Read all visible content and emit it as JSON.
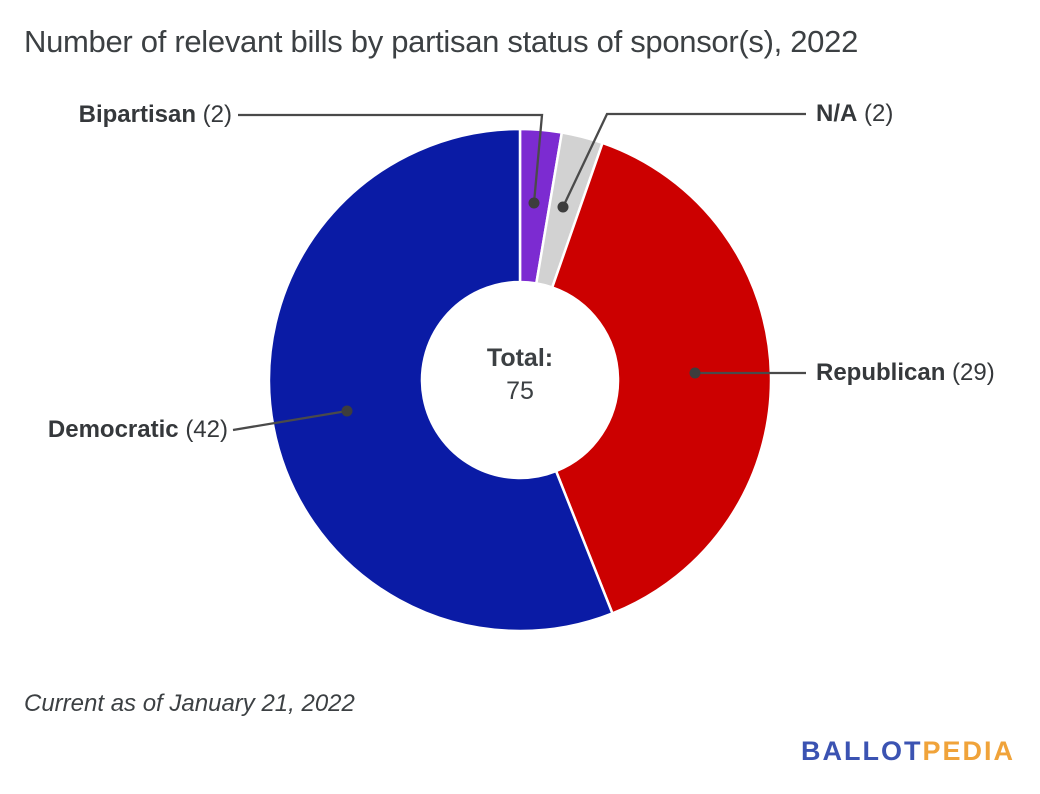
{
  "title": "Number of relevant bills by partisan status of sponsor(s), 2022",
  "chart_data": {
    "type": "pie",
    "subtype": "donut",
    "title": "Number of relevant bills by partisan status of sponsor(s), 2022",
    "categories": [
      "Bipartisan",
      "N/A",
      "Republican",
      "Democratic"
    ],
    "values": [
      2,
      2,
      29,
      42
    ],
    "colors": [
      "#7c2bd1",
      "#d2d2d2",
      "#cc0000",
      "#0a1ba5"
    ],
    "total": 75,
    "center_label": "Total:",
    "center_value": "75",
    "start_angle_deg": 0,
    "direction": "clockwise",
    "labels_style": "callout-leader-lines",
    "legend_position": "none"
  },
  "callouts": {
    "bipartisan": {
      "name": "Bipartisan",
      "count": "(2)"
    },
    "na": {
      "name": "N/A",
      "count": "(2)"
    },
    "republican": {
      "name": "Republican",
      "count": "(29)"
    },
    "democratic": {
      "name": "Democratic",
      "count": "(42)"
    }
  },
  "center": {
    "label": "Total:",
    "value": "75"
  },
  "footer": {
    "note": "Current as of January 21, 2022"
  },
  "logo": {
    "part1": "BALLOT",
    "part2": "PEDIA",
    "color_part1": "#3b53b2",
    "color_part2": "#f0a33a"
  },
  "style_colors": {
    "leader_line": "#4a4a4a",
    "leader_dot": "#3d3d3d",
    "text": "#3c4043"
  }
}
